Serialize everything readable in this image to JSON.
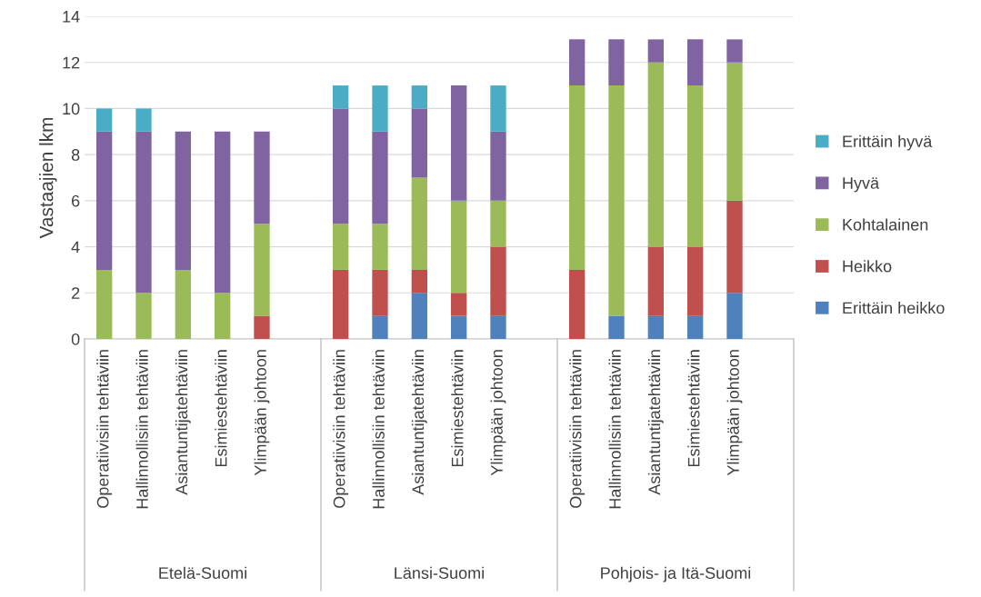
{
  "chart_data": {
    "type": "bar",
    "stacked": true,
    "ylabel": "Vastaajien lkm",
    "categories": [
      "Operatiivisiin tehtäviin",
      "Hallinnollisiin tehtäviin",
      "Asiantuntijatehtäviin",
      "Esimiestehtäviin",
      "Ylimpään johtoon",
      null,
      "Operatiivisiin tehtäviin",
      "Hallinnollisiin tehtäviin",
      "Asiantuntijatehtäviin",
      "Esimiestehtäviin",
      "Ylimpään johtoon",
      null,
      "Operatiivisiin tehtäviin",
      "Hallinnollisiin tehtäviin",
      "Asiantuntijatehtäviin",
      "Esimiestehtäviin",
      "Ylimpään johtoon",
      null
    ],
    "annotations": [
      "Etelä-Suomi",
      "Länsi-Suomi",
      "Pohjois- ja Itä-Suomi"
    ],
    "series": [
      {
        "name": "Erittäin heikko",
        "color": "#4f81bd",
        "values": [
          0,
          0,
          0,
          0,
          0,
          null,
          0,
          1,
          2,
          1,
          1,
          null,
          0,
          1,
          1,
          1,
          2,
          null
        ]
      },
      {
        "name": "Heikko",
        "color": "#c0504d",
        "values": [
          0,
          0,
          0,
          0,
          1,
          null,
          3,
          2,
          1,
          1,
          3,
          null,
          3,
          0,
          3,
          3,
          4,
          null
        ]
      },
      {
        "name": "Kohtalainen",
        "color": "#9bbb59",
        "values": [
          3,
          2,
          3,
          2,
          4,
          null,
          2,
          2,
          4,
          4,
          2,
          null,
          8,
          10,
          8,
          7,
          6,
          null
        ]
      },
      {
        "name": "Hyvä",
        "color": "#8064a2",
        "values": [
          6,
          7,
          6,
          7,
          4,
          null,
          5,
          4,
          3,
          5,
          3,
          null,
          2,
          2,
          1,
          2,
          1,
          null
        ]
      },
      {
        "name": "Erittäin hyvä",
        "color": "#4bacc6",
        "values": [
          1,
          1,
          0,
          0,
          0,
          null,
          1,
          2,
          1,
          0,
          2,
          null,
          0,
          0,
          0,
          0,
          0,
          null
        ]
      }
    ],
    "ylim": [
      0,
      14
    ],
    "yticks": [
      0,
      2,
      4,
      6,
      8,
      10,
      12,
      14
    ],
    "grid": "y",
    "legend": "right"
  }
}
